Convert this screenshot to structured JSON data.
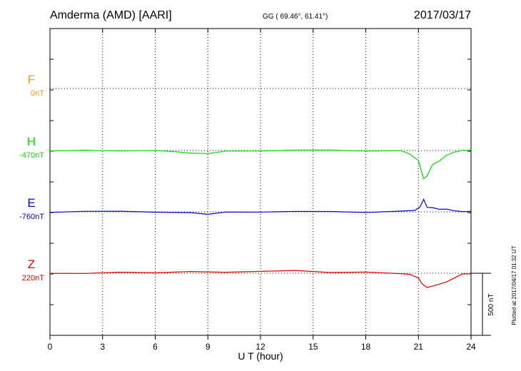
{
  "header": {
    "station": "Amderma (AMD)  [AARI]",
    "coords": "GG ( 69.46°,  61.41°)",
    "date": "2017/03/17"
  },
  "side_note": "Plotted at 2017/04/17 01:32 UT",
  "scale_label": "500 nT",
  "colors": {
    "F": "#f0a000",
    "H": "#00dd00",
    "E": "#0000cc",
    "Z": "#dd0000"
  },
  "chart_data": {
    "type": "line",
    "xlabel": "U T (hour)",
    "xlim": [
      0,
      24
    ],
    "xticks": [
      0,
      3,
      6,
      9,
      12,
      15,
      18,
      21,
      24
    ],
    "scale_bar_nT": 500,
    "series": [
      {
        "name": "F",
        "baseline_label": "0nT",
        "color": "#f0a000",
        "x": [],
        "y": []
      },
      {
        "name": "H",
        "baseline_label": "-470nT",
        "color": "#00dd00",
        "x": [
          0,
          2,
          4,
          5,
          6,
          7,
          8,
          9,
          10,
          12,
          14,
          16,
          18,
          20,
          20.5,
          21,
          21.3,
          21.5,
          21.8,
          22.2,
          22.6,
          23,
          23.5,
          24
        ],
        "y": [
          0,
          -2,
          0,
          -3,
          0,
          -5,
          -25,
          -20,
          -8,
          -3,
          5,
          0,
          0,
          -5,
          -25,
          -80,
          -230,
          -200,
          -120,
          -80,
          -40,
          -15,
          5,
          0
        ]
      },
      {
        "name": "E",
        "baseline_label": "-760nT",
        "color": "#0000cc",
        "x": [
          0,
          2,
          4,
          6,
          8,
          9,
          10,
          12,
          14,
          16,
          18,
          20,
          20.8,
          21.1,
          21.3,
          21.5,
          21.8,
          22.2,
          22.6,
          23,
          23.5,
          24
        ],
        "y": [
          0,
          2,
          5,
          0,
          -10,
          -15,
          -5,
          0,
          5,
          0,
          0,
          2,
          15,
          40,
          100,
          40,
          30,
          25,
          20,
          10,
          5,
          0
        ]
      },
      {
        "name": "Z",
        "baseline_label": "220nT",
        "color": "#dd0000",
        "x": [
          0,
          2,
          4,
          6,
          8,
          10,
          12,
          14,
          16,
          18,
          20,
          20.5,
          21,
          21.2,
          21.5,
          21.8,
          22.2,
          22.6,
          23,
          23.5,
          24
        ],
        "y": [
          0,
          0,
          5,
          8,
          10,
          10,
          15,
          20,
          10,
          5,
          0,
          -10,
          -40,
          -80,
          -120,
          -100,
          -90,
          -70,
          -40,
          -10,
          0
        ]
      }
    ]
  }
}
